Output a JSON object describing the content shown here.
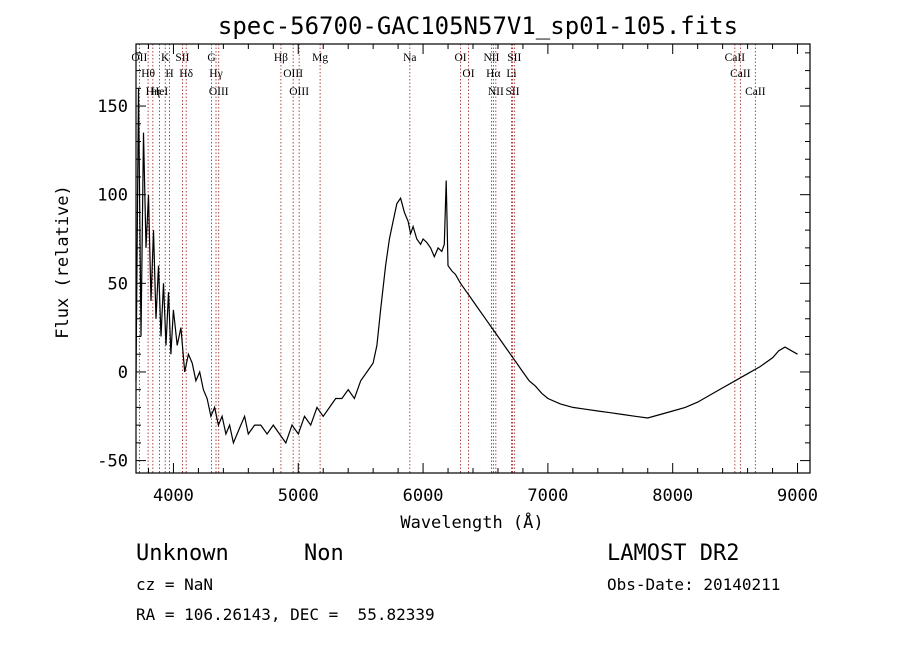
{
  "title": "spec-56700-GAC105N57V1_sp01-105.fits",
  "chart_data": {
    "type": "line",
    "title": "spec-56700-GAC105N57V1_sp01-105.fits",
    "xlabel": "Wavelength (Å)",
    "ylabel": "Flux (relative)",
    "xlim": [
      3700,
      9100
    ],
    "ylim": [
      -57,
      185
    ],
    "xticks": [
      4000,
      5000,
      6000,
      7000,
      8000,
      9000
    ],
    "yticks": [
      -50,
      0,
      50,
      100,
      150
    ],
    "grid": false,
    "series": [
      {
        "x": [
          3700,
          3720,
          3740,
          3760,
          3780,
          3800,
          3820,
          3840,
          3860,
          3880,
          3900,
          3920,
          3940,
          3960,
          3980,
          4000,
          4030,
          4060,
          4090,
          4120,
          4150,
          4180,
          4210,
          4240,
          4270,
          4300,
          4330,
          4360,
          4390,
          4420,
          4450,
          4480,
          4510,
          4540,
          4570,
          4600,
          4650,
          4700,
          4750,
          4800,
          4850,
          4900,
          4950,
          5000,
          5050,
          5100,
          5150,
          5200,
          5250,
          5300,
          5350,
          5400,
          5450,
          5500,
          5550,
          5600,
          5630,
          5660,
          5700,
          5730,
          5760,
          5790,
          5820,
          5850,
          5880,
          5900,
          5920,
          5950,
          5980,
          6000,
          6030,
          6060,
          6090,
          6120,
          6150,
          6170,
          6185,
          6200,
          6230,
          6260,
          6300,
          6350,
          6400,
          6450,
          6500,
          6550,
          6600,
          6650,
          6700,
          6750,
          6800,
          6850,
          6900,
          6950,
          7000,
          7100,
          7200,
          7300,
          7400,
          7500,
          7600,
          7700,
          7800,
          7900,
          8000,
          8100,
          8200,
          8300,
          8400,
          8500,
          8600,
          8700,
          8800,
          8850,
          8900,
          8950,
          9000
        ],
        "y": [
          -5,
          160,
          20,
          135,
          70,
          100,
          40,
          80,
          30,
          60,
          20,
          50,
          15,
          45,
          10,
          35,
          15,
          25,
          0,
          10,
          5,
          -5,
          0,
          -10,
          -15,
          -25,
          -20,
          -30,
          -25,
          -35,
          -30,
          -40,
          -35,
          -30,
          -25,
          -35,
          -30,
          -30,
          -35,
          -30,
          -35,
          -40,
          -30,
          -35,
          -25,
          -30,
          -20,
          -25,
          -20,
          -15,
          -15,
          -10,
          -15,
          -5,
          0,
          5,
          15,
          35,
          60,
          75,
          85,
          95,
          98,
          90,
          85,
          78,
          82,
          75,
          72,
          75,
          73,
          70,
          65,
          70,
          68,
          72,
          108,
          60,
          57,
          55,
          50,
          45,
          40,
          35,
          30,
          25,
          20,
          15,
          10,
          5,
          0,
          -5,
          -8,
          -12,
          -15,
          -18,
          -20,
          -21,
          -22,
          -23,
          -24,
          -25,
          -26,
          -24,
          -22,
          -20,
          -17,
          -13,
          -9,
          -5,
          -1,
          3,
          8,
          12,
          14,
          12,
          10
        ]
      }
    ],
    "emission_lines": [
      {
        "label": "OII",
        "wavelength": 3727
      },
      {
        "label": "Hθ",
        "wavelength": 3797
      },
      {
        "label": "Hη",
        "wavelength": 3835
      },
      {
        "label": "HeI",
        "wavelength": 3889
      },
      {
        "label": "K",
        "wavelength": 3934
      },
      {
        "label": "H",
        "wavelength": 3969
      },
      {
        "label": "SII",
        "wavelength": 4072
      },
      {
        "label": "Hδ",
        "wavelength": 4102
      },
      {
        "label": "G",
        "wavelength": 4305
      },
      {
        "label": "Hγ",
        "wavelength": 4341
      },
      {
        "label": "OIII",
        "wavelength": 4363
      },
      {
        "label": "Hβ",
        "wavelength": 4861
      },
      {
        "label": "OIII",
        "wavelength": 4959
      },
      {
        "label": "OIII",
        "wavelength": 5007
      },
      {
        "label": "Mg",
        "wavelength": 5175
      },
      {
        "label": "Na",
        "wavelength": 5894
      },
      {
        "label": "OI",
        "wavelength": 6300
      },
      {
        "label": "OI",
        "wavelength": 6364
      },
      {
        "label": "NII",
        "wavelength": 6548
      },
      {
        "label": "Hα",
        "wavelength": 6563
      },
      {
        "label": "NII",
        "wavelength": 6583
      },
      {
        "label": "SII",
        "wavelength": 6717
      },
      {
        "label": "SII",
        "wavelength": 6731
      },
      {
        "label": "Li",
        "wavelength": 6708
      },
      {
        "label": "CaII",
        "wavelength": 8498
      },
      {
        "label": "CaII",
        "wavelength": 8542
      },
      {
        "label": "CaII",
        "wavelength": 8662
      }
    ]
  },
  "info": {
    "class": "Unknown",
    "subclass": "Non",
    "survey": "LAMOST DR2",
    "cz": "cz = NaN",
    "obs_date": "Obs-Date: 20140211",
    "radec": "RA = 106.26143, DEC =  55.82339"
  }
}
